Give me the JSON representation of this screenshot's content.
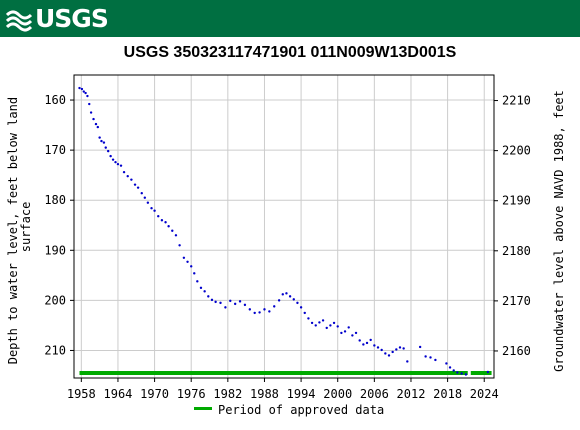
{
  "header": {
    "logo_text": "USGS",
    "logo_icon": "usgs-wave-icon",
    "brand_color": "#006f41"
  },
  "chart_data": {
    "type": "scatter",
    "title": "USGS 350323117471901 011N009W13D001S",
    "ylabel_left_lines": [
      "Depth to water level, feet below land",
      "surface"
    ],
    "ylabel_right": "Groundwater level above NAVD 1988, feet",
    "x_ticks": [
      "1958",
      "1964",
      "1970",
      "1976",
      "1982",
      "1988",
      "1994",
      "2000",
      "2006",
      "2012",
      "2018",
      "2024"
    ],
    "xlim": [
      1956.8,
      2025.6
    ],
    "ylim": [
      155,
      215.5
    ],
    "y_inverted": true,
    "yticks": [
      160,
      170,
      180,
      190,
      200,
      210
    ],
    "y2ticks": [
      2210,
      2200,
      2190,
      2180,
      2170,
      2160
    ],
    "y2_offset": 2370.1,
    "grid": true,
    "series_color": "#0000cc",
    "approved_color": "#00aa00",
    "legend_label": "Period of approved data",
    "legend_position": "bottom-center",
    "approved_periods": [
      [
        1957.7,
        2021.3
      ],
      [
        2021.8,
        2025.2
      ]
    ],
    "points": [
      [
        1957.7,
        157.6
      ],
      [
        1958.1,
        157.8
      ],
      [
        1958.4,
        158.3
      ],
      [
        1958.7,
        158.6
      ],
      [
        1959.0,
        159.2
      ],
      [
        1959.3,
        160.8
      ],
      [
        1959.6,
        162.5
      ],
      [
        1960.0,
        163.8
      ],
      [
        1960.4,
        164.8
      ],
      [
        1960.7,
        165.4
      ],
      [
        1961.0,
        167.5
      ],
      [
        1961.3,
        168.2
      ],
      [
        1961.7,
        168.5
      ],
      [
        1962.0,
        169.5
      ],
      [
        1962.4,
        170.2
      ],
      [
        1962.8,
        171.2
      ],
      [
        1963.2,
        171.9
      ],
      [
        1963.6,
        172.4
      ],
      [
        1964.0,
        172.8
      ],
      [
        1964.5,
        173.1
      ],
      [
        1965.0,
        174.4
      ],
      [
        1965.6,
        175.2
      ],
      [
        1966.2,
        175.9
      ],
      [
        1966.8,
        176.9
      ],
      [
        1967.3,
        177.5
      ],
      [
        1967.9,
        178.6
      ],
      [
        1968.4,
        179.5
      ],
      [
        1968.9,
        180.5
      ],
      [
        1969.5,
        181.6
      ],
      [
        1970.0,
        182.1
      ],
      [
        1970.6,
        183.2
      ],
      [
        1971.2,
        184.0
      ],
      [
        1971.8,
        184.4
      ],
      [
        1972.3,
        185.2
      ],
      [
        1972.9,
        186.1
      ],
      [
        1973.5,
        187.0
      ],
      [
        1974.1,
        189.0
      ],
      [
        1974.8,
        191.5
      ],
      [
        1975.4,
        192.3
      ],
      [
        1976.0,
        193.2
      ],
      [
        1976.5,
        194.6
      ],
      [
        1977.0,
        196.2
      ],
      [
        1977.6,
        197.5
      ],
      [
        1978.2,
        198.2
      ],
      [
        1978.8,
        199.2
      ],
      [
        1979.4,
        199.9
      ],
      [
        1980.0,
        200.3
      ],
      [
        1980.8,
        200.5
      ],
      [
        1981.6,
        201.4
      ],
      [
        1982.4,
        200.1
      ],
      [
        1983.2,
        200.7
      ],
      [
        1984.0,
        200.2
      ],
      [
        1984.8,
        200.9
      ],
      [
        1985.6,
        201.8
      ],
      [
        1986.4,
        202.5
      ],
      [
        1987.2,
        202.4
      ],
      [
        1988.0,
        201.8
      ],
      [
        1988.8,
        202.2
      ],
      [
        1989.6,
        201.2
      ],
      [
        1990.4,
        200.0
      ],
      [
        1991.0,
        198.8
      ],
      [
        1991.6,
        198.6
      ],
      [
        1992.2,
        199.2
      ],
      [
        1992.8,
        199.8
      ],
      [
        1993.4,
        200.5
      ],
      [
        1994.0,
        201.4
      ],
      [
        1994.6,
        202.5
      ],
      [
        1995.2,
        203.6
      ],
      [
        1995.8,
        204.5
      ],
      [
        1996.4,
        205.0
      ],
      [
        1997.0,
        204.4
      ],
      [
        1997.6,
        204.0
      ],
      [
        1998.2,
        205.5
      ],
      [
        1998.8,
        205.0
      ],
      [
        1999.4,
        204.5
      ],
      [
        2000.0,
        205.2
      ],
      [
        2000.6,
        206.5
      ],
      [
        2001.2,
        206.2
      ],
      [
        2001.8,
        205.4
      ],
      [
        2002.4,
        207.0
      ],
      [
        2003.0,
        206.5
      ],
      [
        2003.6,
        208.0
      ],
      [
        2004.2,
        208.8
      ],
      [
        2004.8,
        208.5
      ],
      [
        2005.4,
        207.9
      ],
      [
        2006.0,
        209.0
      ],
      [
        2006.6,
        209.4
      ],
      [
        2007.2,
        209.9
      ],
      [
        2007.8,
        210.6
      ],
      [
        2008.4,
        211.0
      ],
      [
        2009.0,
        210.3
      ],
      [
        2009.6,
        209.8
      ],
      [
        2010.2,
        209.4
      ],
      [
        2010.8,
        209.6
      ],
      [
        2011.4,
        212.2
      ],
      [
        2013.5,
        209.3
      ],
      [
        2014.4,
        211.2
      ],
      [
        2015.2,
        211.4
      ],
      [
        2016.0,
        211.9
      ],
      [
        2017.8,
        212.6
      ],
      [
        2018.4,
        213.4
      ],
      [
        2019.0,
        214.0
      ],
      [
        2019.6,
        214.4
      ],
      [
        2020.3,
        214.6
      ],
      [
        2021.0,
        214.8
      ],
      [
        2024.6,
        214.3
      ]
    ]
  }
}
